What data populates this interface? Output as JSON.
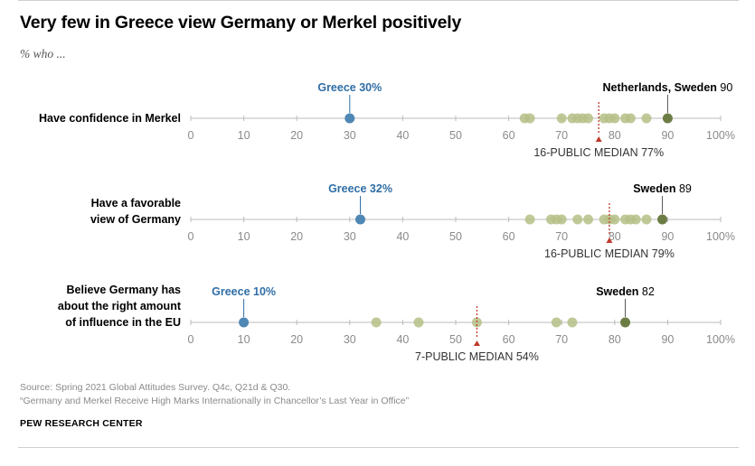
{
  "title": "Very few in Greece view Germany or Merkel positively",
  "subtitle": "% who ...",
  "source_line1": "Source: Spring 2021 Global Attitudes Survey. Q4c, Q21d & Q30.",
  "source_line2": "“Germany and Merkel Receive High Marks Internationally in Chancellor’s Last Year in Office”",
  "organization": "PEW RESEARCH CENTER",
  "colors": {
    "greece": "#4f87b5",
    "greece_text": "#2f6ea6",
    "others": "#b5bf86",
    "top": "#6b7d45",
    "axis": "#bbbbbb",
    "tick_label": "#8a8a8a",
    "median": "#c0392b"
  },
  "chart_data": {
    "type": "scatter",
    "xlim": [
      0,
      100
    ],
    "ticks": [
      "0",
      "10",
      "20",
      "30",
      "40",
      "50",
      "60",
      "70",
      "80",
      "90",
      "100%"
    ],
    "rows": [
      {
        "label_lines": [
          "Have confidence in Merkel"
        ],
        "greece_value": 30,
        "greece_label": "Greece 30%",
        "top_country": "Netherlands, Sweden",
        "top_value": 90,
        "others": [
          63,
          64,
          70,
          72,
          73,
          74,
          75,
          78,
          79,
          80,
          82,
          83,
          86
        ],
        "median_label": "16-PUBLIC MEDIAN 77%",
        "median": 77
      },
      {
        "label_lines": [
          "Have a favorable",
          "view of Germany"
        ],
        "greece_value": 32,
        "greece_label": "Greece 32%",
        "top_country": "Sweden",
        "top_value": 89,
        "others": [
          64,
          68,
          69,
          70,
          73,
          75,
          78,
          79,
          80,
          82,
          83,
          84,
          86
        ],
        "median_label": "16-PUBLIC MEDIAN 79%",
        "median": 79
      },
      {
        "label_lines": [
          "Believe Germany has",
          "about the right amount",
          "of influence in the EU"
        ],
        "greece_value": 10,
        "greece_label": "Greece 10%",
        "top_country": "Sweden",
        "top_value": 82,
        "others": [
          35,
          43,
          54,
          69,
          72
        ],
        "median_label": "7-PUBLIC MEDIAN 54%",
        "median": 54
      }
    ]
  }
}
